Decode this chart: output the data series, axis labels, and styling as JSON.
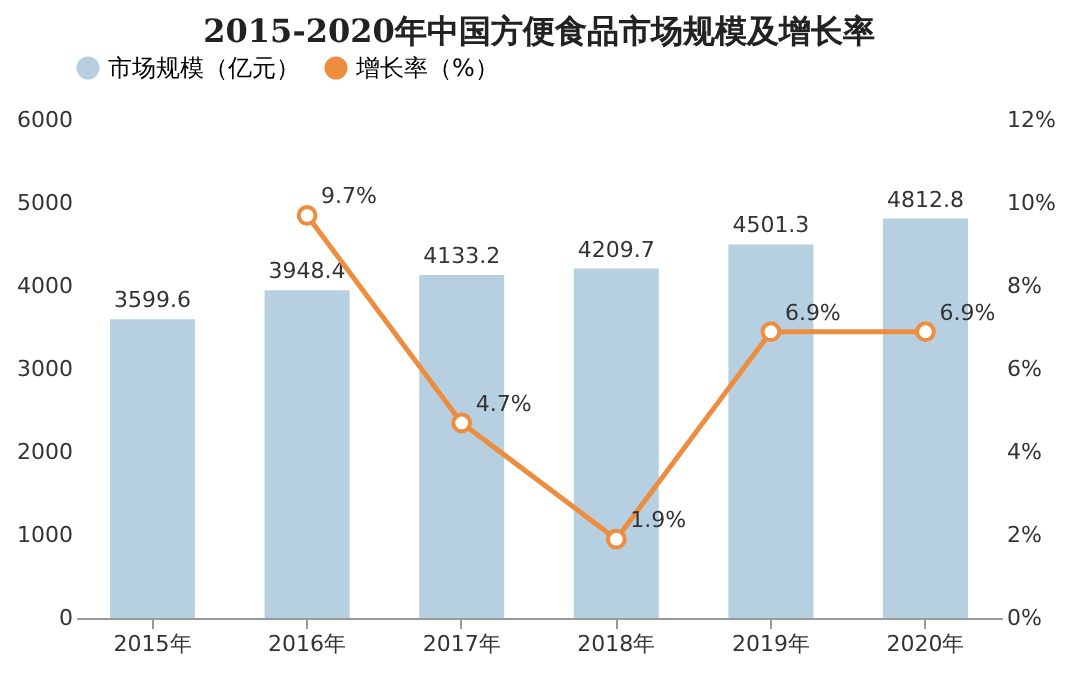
{
  "chart_data": {
    "type": "bar",
    "title": "2015-2020年中国方便食品市场规模及增长率",
    "categories": [
      "2015年",
      "2016年",
      "2017年",
      "2018年",
      "2019年",
      "2020年"
    ],
    "series": [
      {
        "name": "市场规模（亿元）",
        "color": "#b6d0e2",
        "values": [
          3599.6,
          3948.4,
          4133.2,
          4209.7,
          4501.3,
          4812.8
        ],
        "value_labels": [
          "3599.6",
          "3948.4",
          "4133.2",
          "4209.7",
          "4501.3",
          "4812.8"
        ]
      },
      {
        "name": "增长率（%）",
        "type": "line",
        "axis": "y2",
        "color": "#ed8d3f",
        "marker": "circle",
        "values": [
          null,
          9.7,
          4.7,
          1.9,
          6.9,
          6.9
        ],
        "value_labels": [
          null,
          "9.7%",
          "4.7%",
          "1.9%",
          "6.9%",
          "6.9%"
        ]
      }
    ],
    "ylim": [
      0,
      6000
    ],
    "yticks": [
      0,
      1000,
      2000,
      3000,
      4000,
      5000,
      6000
    ],
    "y2lim": [
      0,
      12
    ],
    "y2ticks": [
      {
        "value": 0,
        "label": "0%"
      },
      {
        "value": 2,
        "label": "2%"
      },
      {
        "value": 4,
        "label": "4%"
      },
      {
        "value": 6,
        "label": "6%"
      },
      {
        "value": 8,
        "label": "8%"
      },
      {
        "value": 10,
        "label": "10%"
      },
      {
        "value": 12,
        "label": "12%"
      }
    ],
    "grid": false,
    "legend": "top"
  }
}
